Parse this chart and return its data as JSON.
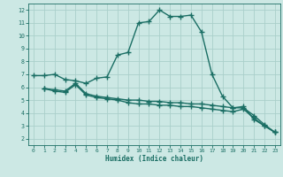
{
  "bg_color": "#cce8e4",
  "grid_color": "#aacfca",
  "line_color": "#1a6e64",
  "line_width": 1.0,
  "marker": "+",
  "marker_size": 4,
  "marker_edge_width": 1.0,
  "xlabel": "Humidex (Indice chaleur)",
  "xlim": [
    -0.5,
    23.5
  ],
  "ylim": [
    1.5,
    12.5
  ],
  "xticks": [
    0,
    1,
    2,
    3,
    4,
    5,
    6,
    7,
    8,
    9,
    10,
    11,
    12,
    13,
    14,
    15,
    16,
    17,
    18,
    19,
    20,
    21,
    22,
    23
  ],
  "yticks": [
    2,
    3,
    4,
    5,
    6,
    7,
    8,
    9,
    10,
    11,
    12
  ],
  "curve1_x": [
    0,
    1,
    2,
    3,
    4,
    5,
    6,
    7,
    8,
    9,
    10,
    11,
    12,
    13,
    14,
    15,
    16,
    17,
    18,
    19,
    20,
    21,
    22,
    23
  ],
  "curve1_y": [
    6.9,
    6.9,
    7.0,
    6.6,
    6.5,
    6.3,
    6.7,
    6.8,
    8.5,
    8.7,
    11.0,
    11.1,
    12.0,
    11.5,
    11.5,
    11.6,
    10.3,
    7.0,
    5.3,
    4.4,
    4.5,
    3.5,
    3.0,
    2.5
  ],
  "curve2_x": [
    1,
    2,
    3,
    4,
    5,
    6,
    7,
    8,
    9,
    10,
    11,
    12,
    13,
    14,
    15,
    16,
    17,
    18,
    19,
    20,
    21,
    22,
    23
  ],
  "curve2_y": [
    5.9,
    5.8,
    5.7,
    6.3,
    5.5,
    5.3,
    5.2,
    5.1,
    5.0,
    5.0,
    4.9,
    4.9,
    4.8,
    4.8,
    4.7,
    4.7,
    4.6,
    4.5,
    4.4,
    4.4,
    3.8,
    3.1,
    2.5
  ],
  "curve3_x": [
    1,
    2,
    3,
    4,
    5,
    6,
    7,
    8,
    9,
    10,
    11,
    12,
    13,
    14,
    15,
    16,
    17,
    18,
    19,
    20,
    21,
    22,
    23
  ],
  "curve3_y": [
    5.9,
    5.7,
    5.6,
    6.2,
    5.4,
    5.2,
    5.1,
    5.0,
    4.8,
    4.7,
    4.7,
    4.6,
    4.6,
    4.5,
    4.5,
    4.4,
    4.3,
    4.2,
    4.1,
    4.3,
    3.6,
    3.0,
    2.5
  ]
}
